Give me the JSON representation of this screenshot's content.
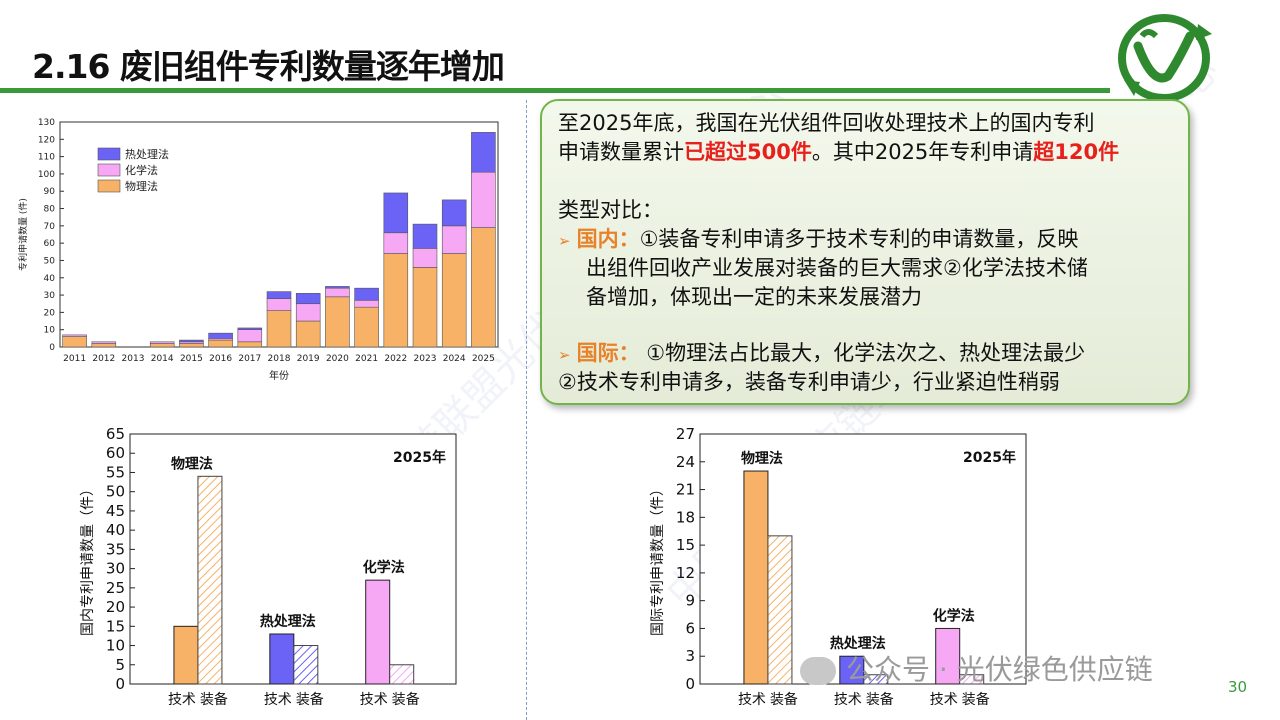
{
  "slide": {
    "title": "2.16 废旧组件专利数量逐年增加",
    "page_number": "30",
    "watermark_text": "公众号 · 光伏绿色供应链",
    "diagonal_watermark": "中国绿色供应链联盟光伏回收产业发展中心"
  },
  "textbox": {
    "line1": "至2025年底，我国在光伏组件回收处理技术上的国内专利",
    "line2a": "申请数量累计",
    "line2b": "已超过500件",
    "line2c": "。其中2025年专利申请",
    "line2d": "超120件",
    "heading": "类型对比：",
    "domestic_label": "国内：",
    "domestic_1": "①装备专利申请多于技术专利的申请数量，反映",
    "domestic_2": "出组件回收产业发展对装备的巨大需求②化学法技术储",
    "domestic_3": "备增加，体现出一定的未来发展潜力",
    "intl_label": "国际：",
    "intl_1": " ①物理法占比最大，化学法次之、热处理法最少",
    "intl_2": "②技术专利申请多，装备专利申请少，行业紧迫性稍弱"
  },
  "colors": {
    "physical": "#f7b267",
    "chemical": "#f6a8f4",
    "thermal": "#6a63f5",
    "accent_green": "#3a9a3a",
    "highlight_red": "#e8201c",
    "highlight_orange": "#e8822a"
  },
  "chart_data": [
    {
      "type": "bar",
      "stacked": true,
      "categories": [
        "2011",
        "2012",
        "2013",
        "2014",
        "2015",
        "2016",
        "2017",
        "2018",
        "2019",
        "2020",
        "2021",
        "2022",
        "2023",
        "2024",
        "2025"
      ],
      "series": [
        {
          "name": "物理法",
          "values": [
            6,
            2,
            0,
            2,
            2,
            4,
            3,
            21,
            15,
            29,
            23,
            54,
            46,
            54,
            69
          ]
        },
        {
          "name": "化学法",
          "values": [
            1,
            1,
            0,
            1,
            1,
            1,
            7,
            7,
            10,
            5,
            4,
            12,
            11,
            16,
            32
          ]
        },
        {
          "name": "热处理法",
          "values": [
            0,
            0,
            0,
            0,
            1,
            3,
            1,
            4,
            6,
            1,
            7,
            23,
            14,
            15,
            23
          ]
        }
      ],
      "xlabel": "年份",
      "ylabel": "专利申请数量 (件)",
      "ylim": [
        0,
        130
      ],
      "yticks": [
        0,
        10,
        20,
        30,
        40,
        50,
        60,
        70,
        80,
        90,
        100,
        110,
        120,
        130
      ],
      "legend": [
        "热处理法",
        "化学法",
        "物理法"
      ],
      "legend_position": "top-left"
    },
    {
      "type": "bar",
      "title": "2025年",
      "ylabel": "国内专利申请数量（件）",
      "ylim": [
        0,
        65
      ],
      "yticks": [
        0,
        5,
        10,
        15,
        20,
        25,
        30,
        35,
        40,
        45,
        50,
        55,
        60,
        65
      ],
      "groups": [
        "物理法",
        "热处理法",
        "化学法"
      ],
      "bars": [
        "技术",
        "装备"
      ],
      "values": [
        [
          15,
          54
        ],
        [
          13,
          10
        ],
        [
          27,
          5
        ]
      ]
    },
    {
      "type": "bar",
      "title": "2025年",
      "ylabel": "国际专利申请数量（件）",
      "ylim": [
        0,
        27
      ],
      "yticks": [
        0,
        3,
        6,
        9,
        12,
        15,
        18,
        21,
        24,
        27
      ],
      "groups": [
        "物理法",
        "热处理法",
        "化学法"
      ],
      "bars": [
        "技术",
        "装备"
      ],
      "values": [
        [
          23,
          16
        ],
        [
          3,
          1
        ],
        [
          6,
          1
        ]
      ]
    }
  ]
}
